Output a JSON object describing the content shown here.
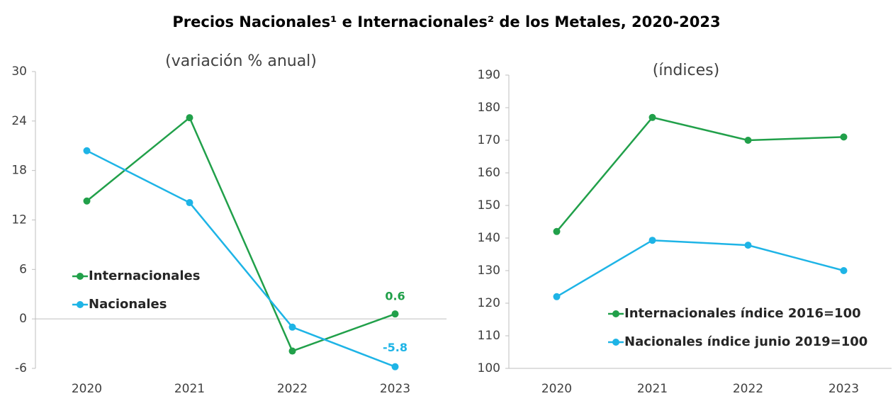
{
  "title": "Precios Nacionales¹ e Internacionales² de los Metales, 2020-2023",
  "chart_data": [
    {
      "type": "line",
      "subtitle": "(variación % anual)",
      "categories": [
        "2020",
        "2021",
        "2022",
        "2023"
      ],
      "series": [
        {
          "name": "Internacionales",
          "color": "#21a04a",
          "values": [
            14.3,
            24.4,
            -3.9,
            0.6
          ]
        },
        {
          "name": "Nacionales",
          "color": "#1eb4e6",
          "values": [
            20.4,
            14.1,
            -1.0,
            -5.8
          ]
        }
      ],
      "ylim": [
        -6,
        30
      ],
      "yticks": [
        -6,
        0,
        6,
        12,
        18,
        24,
        30
      ],
      "zero_line": true,
      "show_last_value": true,
      "legend": "left"
    },
    {
      "type": "line",
      "subtitle": "(índices)",
      "categories": [
        "2020",
        "2021",
        "2022",
        "2023"
      ],
      "series": [
        {
          "name": "Internacionales índice 2016=100",
          "color": "#21a04a",
          "values": [
            142,
            177,
            170,
            171
          ]
        },
        {
          "name": "Nacionales índice junio 2019=100",
          "color": "#1eb4e6",
          "values": [
            122,
            139.3,
            137.8,
            130
          ]
        }
      ],
      "ylim": [
        100,
        190
      ],
      "yticks": [
        100,
        110,
        120,
        130,
        140,
        150,
        160,
        170,
        180,
        190
      ],
      "zero_line": false,
      "show_last_value": false,
      "legend": "lower right"
    }
  ]
}
